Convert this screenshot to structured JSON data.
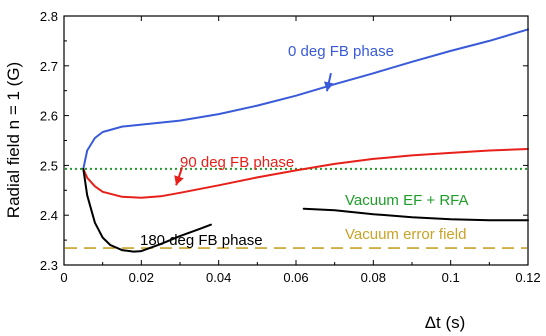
{
  "chart_data": {
    "type": "line",
    "xlabel": "Δt (s)",
    "ylabel": "Radial field n = 1 (G)",
    "xlim": [
      0,
      0.12
    ],
    "ylim": [
      2.3,
      2.8
    ],
    "x_ticks": [
      "0",
      "0.02",
      "0.04",
      "0.06",
      "0.08",
      "0.1",
      "0.12"
    ],
    "y_ticks": [
      "2.3",
      "2.4",
      "2.5",
      "2.6",
      "2.7",
      "2.8"
    ],
    "grid": false,
    "series": [
      {
        "name": "0 deg FB phase",
        "color": "#3a5bd9",
        "x": [
          0.005,
          0.006,
          0.008,
          0.01,
          0.015,
          0.02,
          0.03,
          0.04,
          0.05,
          0.06,
          0.07,
          0.08,
          0.09,
          0.1,
          0.11,
          0.12
        ],
        "y": [
          2.493,
          2.53,
          2.555,
          2.567,
          2.578,
          2.582,
          2.59,
          2.603,
          2.62,
          2.64,
          2.663,
          2.685,
          2.708,
          2.73,
          2.75,
          2.773
        ]
      },
      {
        "name": "90 deg FB phase",
        "color": "#e8201a",
        "x": [
          0.005,
          0.006,
          0.008,
          0.01,
          0.015,
          0.02,
          0.025,
          0.03,
          0.04,
          0.05,
          0.06,
          0.07,
          0.08,
          0.09,
          0.1,
          0.11,
          0.12
        ],
        "y": [
          2.493,
          2.475,
          2.458,
          2.447,
          2.437,
          2.435,
          2.438,
          2.445,
          2.46,
          2.476,
          2.49,
          2.503,
          2.513,
          2.52,
          2.525,
          2.53,
          2.533
        ]
      },
      {
        "name": "180 deg FB phase",
        "color": "#000000",
        "x": [
          0.005,
          0.006,
          0.008,
          0.01,
          0.012,
          0.015,
          0.018,
          0.02,
          0.025,
          0.03,
          0.035,
          0.038
        ],
        "y": [
          2.493,
          2.44,
          2.385,
          2.355,
          2.34,
          2.33,
          2.327,
          2.328,
          2.342,
          2.358,
          2.372,
          2.381
        ]
      },
      {
        "name": "180 deg FB phase (continued)",
        "color": "#000000",
        "x": [
          0.062,
          0.07,
          0.08,
          0.09,
          0.1,
          0.11,
          0.12
        ],
        "y": [
          2.413,
          2.41,
          2.402,
          2.396,
          2.392,
          2.39,
          2.39
        ]
      }
    ],
    "reference_lines": [
      {
        "name": "Vacuum EF + RFA",
        "y": 2.493,
        "color": "#1f9e2a",
        "style": "dotted"
      },
      {
        "name": "Vacuum error field",
        "y": 2.334,
        "color": "#c9a227",
        "style": "dashed"
      }
    ],
    "annotations": [
      {
        "text": "0 deg FB phase",
        "color": "#3a5bd9",
        "arrow_x": 0.068,
        "arrow_y": 2.645
      },
      {
        "text": "90 deg FB phase",
        "color": "#e8201a",
        "arrow_x": 0.029,
        "arrow_y": 2.456
      },
      {
        "text": "Vacuum EF + RFA",
        "color": "#1f9e2a"
      },
      {
        "text": "180 deg FB phase",
        "color": "#000000"
      },
      {
        "text": "Vacuum error field",
        "color": "#c9a227"
      }
    ]
  }
}
